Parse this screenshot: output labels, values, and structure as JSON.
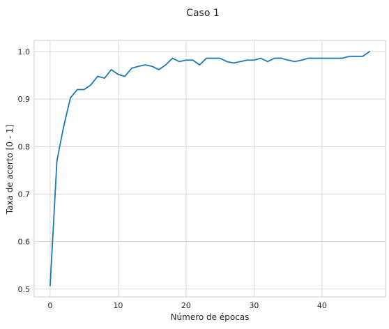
{
  "chart_data": {
    "type": "line",
    "title": "Caso 1",
    "xlabel": "Número de épocas",
    "ylabel": "Taxa de acerto [0 - 1]",
    "xlim": [
      -2.35,
      49.35
    ],
    "ylim": [
      0.4835,
      1.0235
    ],
    "xticks": [
      0,
      10,
      20,
      30,
      40
    ],
    "xtick_labels": [
      "0",
      "10",
      "20",
      "30",
      "40"
    ],
    "yticks": [
      0.5,
      0.6,
      0.7,
      0.8,
      0.9,
      1.0
    ],
    "ytick_labels": [
      "0.5",
      "0.6",
      "0.7",
      "0.8",
      "0.9",
      "1.0"
    ],
    "grid": true,
    "series": [
      {
        "x": [
          0,
          1,
          2,
          3,
          4,
          5,
          6,
          7,
          8,
          9,
          10,
          11,
          12,
          13,
          14,
          15,
          16,
          17,
          18,
          19,
          20,
          21,
          22,
          23,
          24,
          25,
          26,
          27,
          28,
          29,
          30,
          31,
          32,
          33,
          34,
          35,
          36,
          37,
          38,
          39,
          40,
          41,
          42,
          43,
          44,
          45,
          46,
          47
        ],
        "values": [
          0.507,
          0.77,
          0.843,
          0.903,
          0.92,
          0.92,
          0.93,
          0.948,
          0.944,
          0.962,
          0.952,
          0.948,
          0.965,
          0.969,
          0.972,
          0.969,
          0.962,
          0.972,
          0.986,
          0.979,
          0.982,
          0.982,
          0.972,
          0.986,
          0.986,
          0.986,
          0.979,
          0.976,
          0.979,
          0.982,
          0.982,
          0.986,
          0.979,
          0.986,
          0.986,
          0.982,
          0.979,
          0.982,
          0.986,
          0.986,
          0.986,
          0.986,
          0.986,
          0.986,
          0.99,
          0.99,
          0.99,
          1.0
        ]
      }
    ],
    "colors": {
      "line": "#1f77b4",
      "grid": "#d0d0d0",
      "axes_edge": "#cccccc",
      "text": "#262626"
    }
  }
}
